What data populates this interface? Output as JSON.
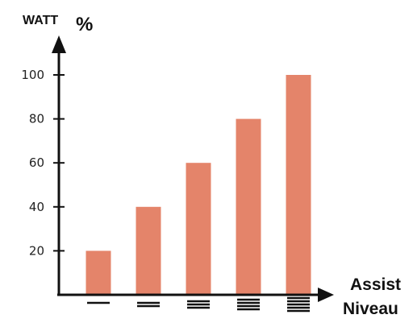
{
  "chart_data": {
    "type": "bar",
    "ylabel": "WATT",
    "ylabel_unit": "%",
    "xlabel_line1": "Assist",
    "xlabel_line2": "Niveau",
    "categories": [
      "1",
      "2",
      "3",
      "4",
      "5"
    ],
    "values": [
      20,
      40,
      60,
      80,
      100
    ],
    "yticks": [
      20,
      40,
      60,
      80,
      100
    ],
    "ylim": [
      0,
      110
    ],
    "grid": false,
    "legend": "none",
    "category_marks": "horizontal bar count equals assist level",
    "bar_color": "#e4846a",
    "axis_color": "#111111"
  }
}
